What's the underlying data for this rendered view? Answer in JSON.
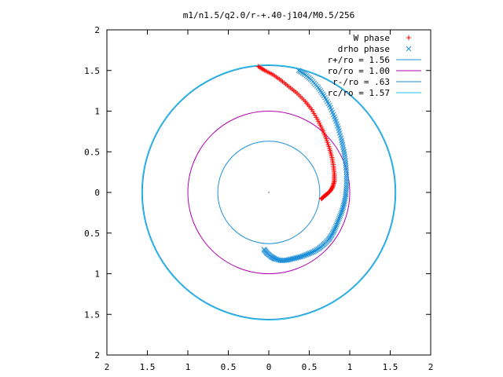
{
  "chart_data": {
    "type": "scatter",
    "title": "m1/n1.5/q2.0/r-+.40-j104/M0.5/256",
    "xlabel": "",
    "ylabel": "",
    "xlim": [
      -2,
      2
    ],
    "ylim": [
      -2,
      2
    ],
    "x_tick_values": [
      -2,
      -1.5,
      -1,
      -0.5,
      0,
      0.5,
      1,
      1.5,
      2
    ],
    "x_tick_labels": [
      "2",
      "1.5",
      "1",
      "0.5",
      "0",
      "0.5",
      "1",
      "1.5",
      "2"
    ],
    "y_tick_values": [
      2,
      1.5,
      1,
      0.5,
      0,
      -0.5,
      -1,
      -1.5,
      -2
    ],
    "y_tick_labels": [
      "2",
      "1.5",
      "1",
      "0.5",
      "0",
      "0.5",
      "1",
      "1.5",
      "2"
    ],
    "grid": false,
    "legend_position": "top-right",
    "series": [
      {
        "name": "W phase",
        "kind": "points",
        "marker": "plus",
        "color": "#ff0000",
        "x": [
          -0.13,
          -0.05,
          0.05,
          0.15,
          0.25,
          0.35,
          0.45,
          0.53,
          0.6,
          0.66,
          0.71,
          0.75,
          0.78,
          0.8,
          0.81,
          0.81,
          0.79,
          0.76,
          0.72,
          0.68,
          0.65
        ],
        "y": [
          1.55,
          1.5,
          1.45,
          1.38,
          1.3,
          1.22,
          1.12,
          1.02,
          0.9,
          0.78,
          0.66,
          0.54,
          0.43,
          0.32,
          0.22,
          0.14,
          0.07,
          0.02,
          -0.02,
          -0.05,
          -0.08
        ]
      },
      {
        "name": "drho phase",
        "kind": "points",
        "marker": "x",
        "color": "#1f8fd8",
        "x": [
          0.37,
          0.45,
          0.53,
          0.61,
          0.68,
          0.75,
          0.81,
          0.86,
          0.9,
          0.93,
          0.95,
          0.96,
          0.96,
          0.95,
          0.93,
          0.9,
          0.86,
          0.82,
          0.78,
          0.74,
          0.68,
          0.62,
          0.55,
          0.48,
          0.4,
          0.32,
          0.24,
          0.16,
          0.08,
          0.03,
          -0.02,
          -0.06
        ],
        "y": [
          1.5,
          1.45,
          1.38,
          1.29,
          1.19,
          1.07,
          0.93,
          0.79,
          0.64,
          0.5,
          0.36,
          0.22,
          0.09,
          -0.03,
          -0.14,
          -0.24,
          -0.34,
          -0.44,
          -0.52,
          -0.58,
          -0.64,
          -0.69,
          -0.73,
          -0.76,
          -0.79,
          -0.81,
          -0.83,
          -0.84,
          -0.82,
          -0.79,
          -0.75,
          -0.7
        ]
      },
      {
        "name": "r+/ro = 1.56",
        "kind": "circle",
        "radius": 1.56,
        "color": "#1f8fd8"
      },
      {
        "name": "ro/ro = 1.00",
        "kind": "circle",
        "radius": 1.0,
        "color": "#b000b0"
      },
      {
        "name": "r-/ro = .63",
        "kind": "circle",
        "radius": 0.63,
        "color": "#1f8fd8"
      },
      {
        "name": "rc/ro = 1.57",
        "kind": "circle",
        "radius": 1.57,
        "color": "#20c0e8"
      }
    ]
  }
}
